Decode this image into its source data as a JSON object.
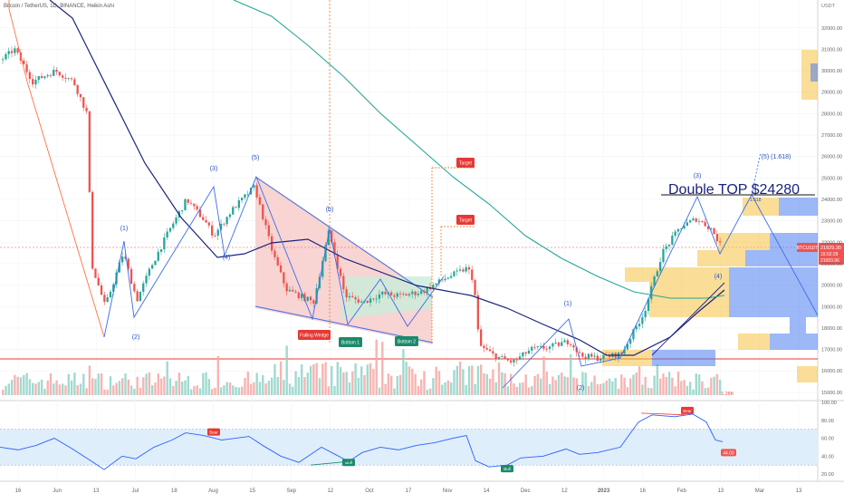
{
  "header": {
    "symbol_line": "Bitcoin / TetherUS, 1D, BINANCE, Heikin Ashi"
  },
  "chart_data": {
    "type": "candlestick",
    "instrument": "BTCUSDT",
    "price_axis": {
      "unit": "USDT",
      "range": [
        14700,
        33300
      ],
      "ticks": [
        "15000.00",
        "16000.00",
        "17000.00",
        "18000.00",
        "19000.00",
        "20000.00",
        "21000.00",
        "22000.00",
        "23000.00",
        "24000.00",
        "25000.00",
        "26000.00",
        "27000.00",
        "28000.00",
        "29000.00",
        "30000.00",
        "31000.00",
        "32000.00"
      ]
    },
    "time_axis": {
      "labels": [
        "16",
        "Jun",
        "13",
        "Jul",
        "18",
        "Aug",
        "15",
        "Sep",
        "12",
        "Oct",
        "17",
        "Nov",
        "14",
        "Dec",
        "12",
        "2023",
        "16",
        "Feb",
        "13",
        "Mar",
        "13"
      ]
    },
    "last_price": {
      "label": "BTCUSDT",
      "value": "21829.30",
      "countdown": "15:52:29",
      "low_tag": "21003.96",
      "color": "#ef5350"
    },
    "candle_colors": {
      "up": "#26a69a",
      "down": "#ef5350"
    },
    "wave_labels": [
      "(1)",
      "(2)",
      "(3)",
      "(4)",
      "(5)",
      "(b)",
      "(1)",
      "(2)",
      "(3)",
      "(4)",
      "(5) (1.618)"
    ],
    "annotations": {
      "title": "Double TOP  $24280",
      "falling_wedge": "Falling Wedge",
      "bottom_1": "Bottom 1",
      "bottom_2": "Bottom 2",
      "target_1": "Target",
      "target_2": "Target",
      "top_marker": "1.618"
    },
    "moving_averages": [
      {
        "name": "fast",
        "color": "#1a237e"
      },
      {
        "name": "slow",
        "color": "#26a69a"
      }
    ],
    "volume_profile": {
      "colors": [
        "#f5c242",
        "#4a7ef0"
      ]
    },
    "rsi": {
      "axis_ticks": [
        "100.00",
        "80.00",
        "60.00",
        "40.00",
        "20.00"
      ],
      "range": [
        15,
        100
      ],
      "band": [
        30,
        70
      ],
      "last_value": "44.00",
      "signals": {
        "bear_1": "Bear",
        "bull_1": "Bull",
        "bull_2": "Bull",
        "bear_2": "Bear"
      },
      "line_color": "#2962ff"
    },
    "volume_scale": "1.28K"
  }
}
